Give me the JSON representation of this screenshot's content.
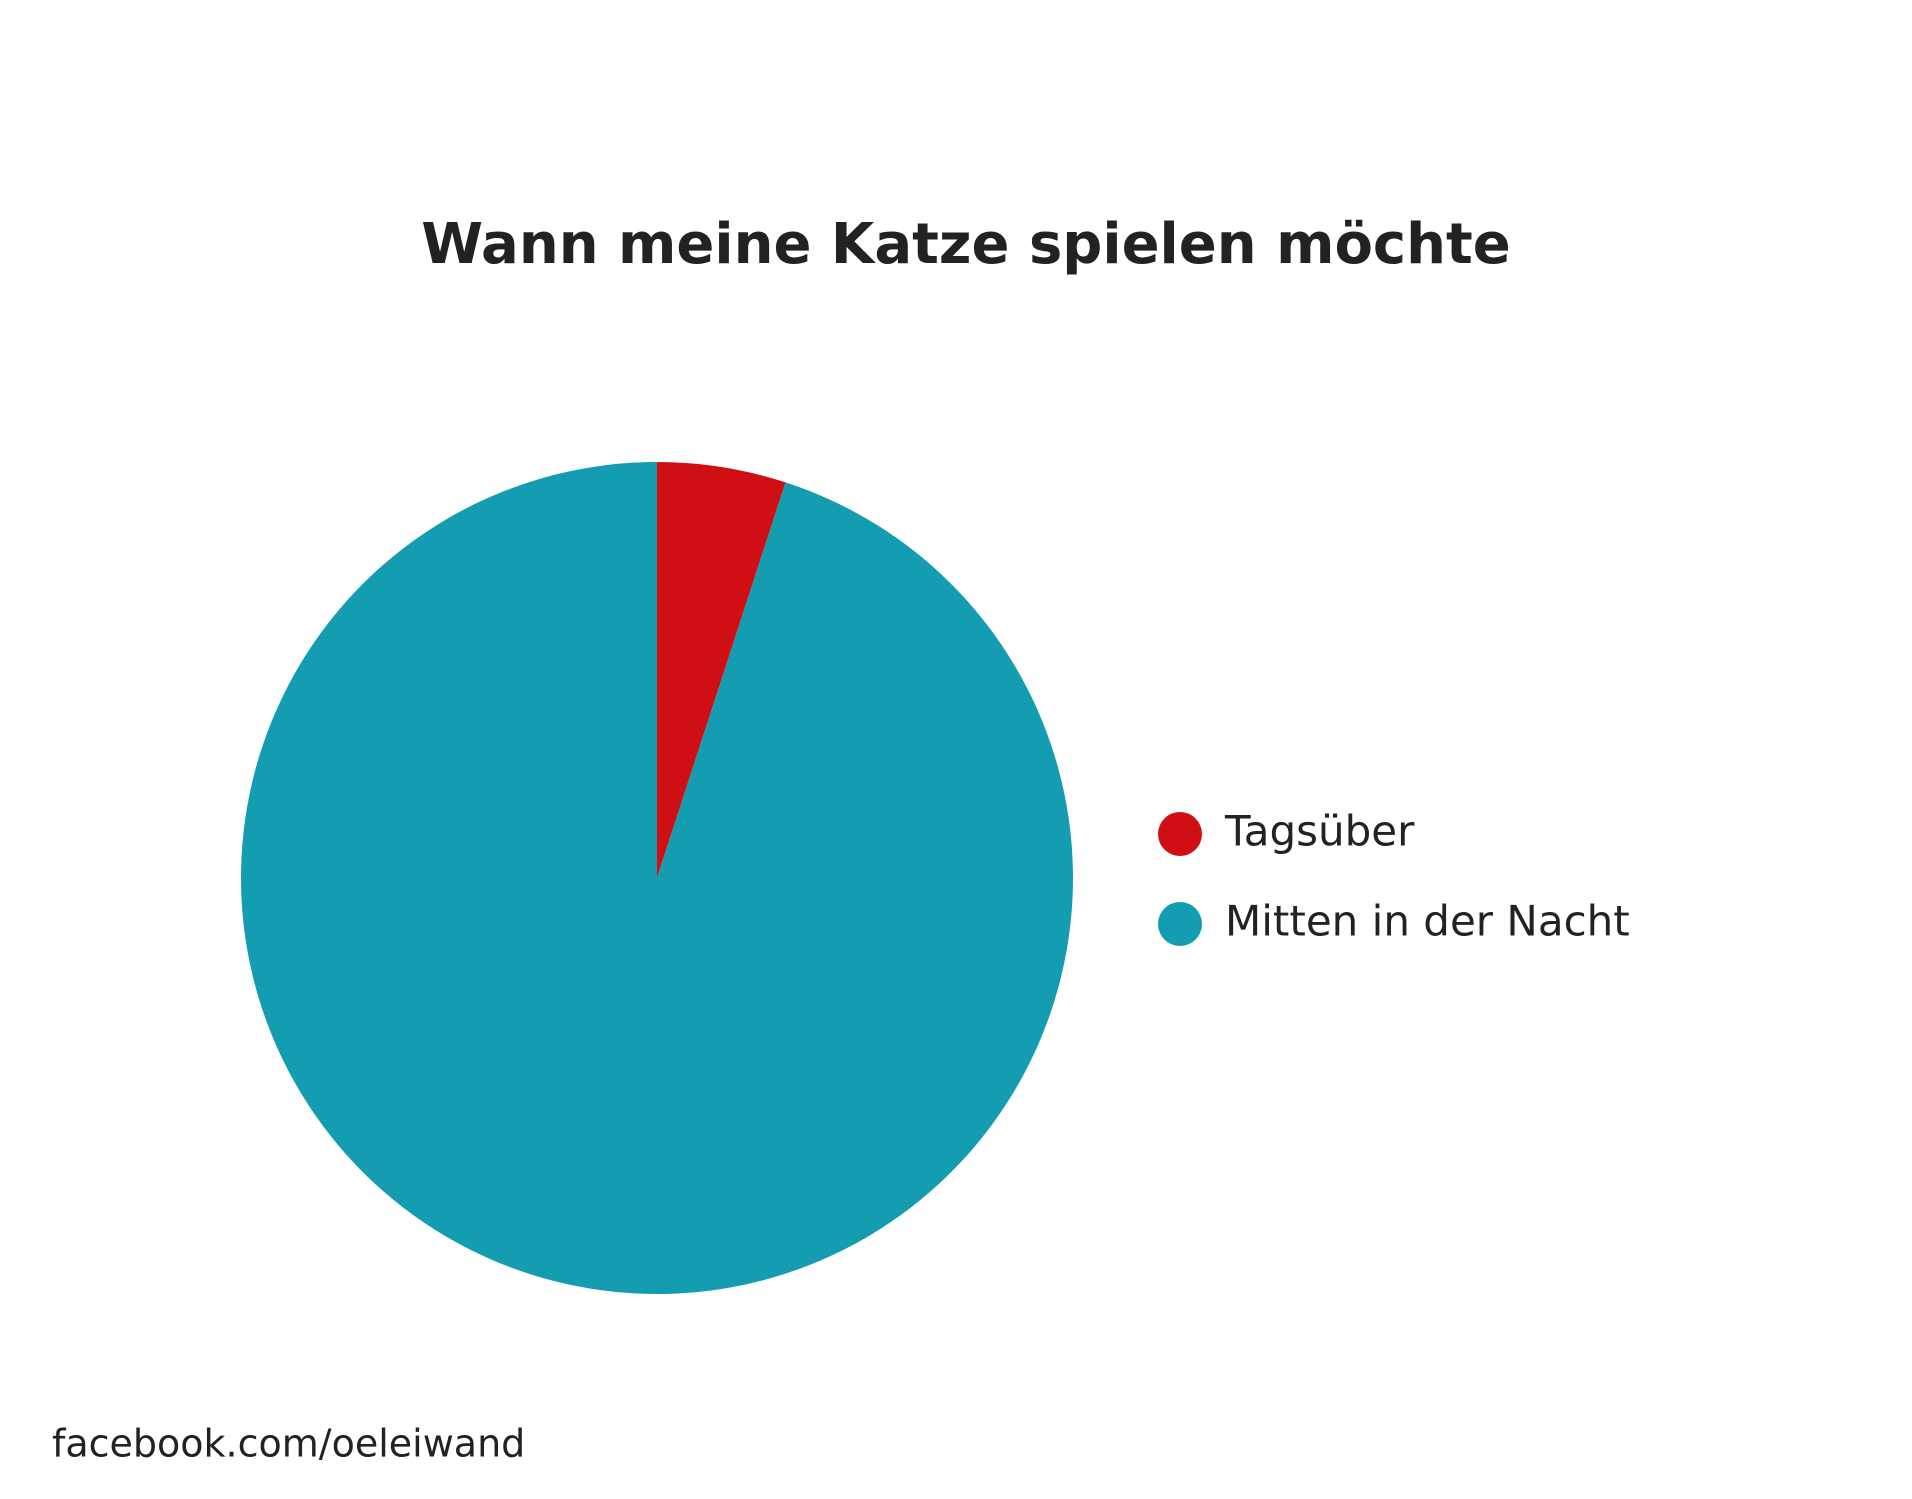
{
  "chart_data": {
    "type": "pie",
    "title": "Wann meine Katze spielen möchte",
    "categories": [
      "Tagsüber",
      "Mitten in der Nacht"
    ],
    "values": [
      5,
      95
    ],
    "colors": [
      "#d00f14",
      "#149db0"
    ],
    "legend": "right",
    "source": "facebook.com/oeleiwand"
  }
}
